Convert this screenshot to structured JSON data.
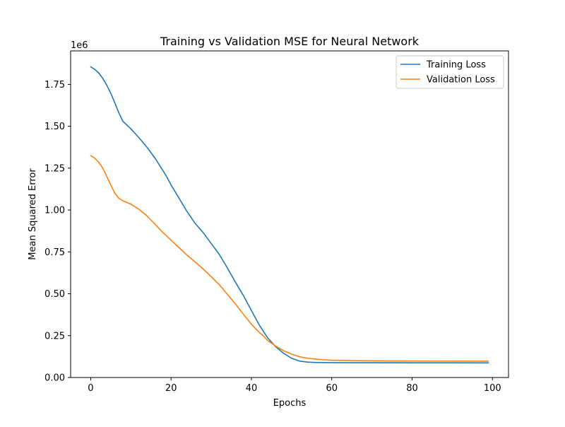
{
  "chart_data": {
    "type": "line",
    "title": "Training vs Validation MSE for Neural Network",
    "xlabel": "Epochs",
    "ylabel": "Mean Squared Error",
    "y_offset_label": "1e6",
    "y_scale": 1000000,
    "xlim": [
      -5,
      104
    ],
    "ylim": [
      0,
      1950000
    ],
    "xticks": [
      0,
      20,
      40,
      60,
      80,
      100
    ],
    "xtick_labels": [
      "0",
      "20",
      "40",
      "60",
      "80",
      "100"
    ],
    "yticks": [
      0,
      250000,
      500000,
      750000,
      1000000,
      1250000,
      1500000,
      1750000
    ],
    "ytick_labels": [
      "0.00",
      "0.25",
      "0.50",
      "0.75",
      "1.00",
      "1.25",
      "1.50",
      "1.75"
    ],
    "grid": false,
    "legend_position": "top-right",
    "series": [
      {
        "name": "Training Loss",
        "color": "#1f77b4",
        "x": [
          0,
          1,
          2,
          3,
          4,
          5,
          6,
          7,
          8,
          10,
          12,
          14,
          16,
          18,
          19,
          20,
          22,
          24,
          26,
          28,
          30,
          32,
          34,
          36,
          38,
          40,
          42,
          44,
          46,
          48,
          50,
          52,
          54,
          56,
          58,
          60,
          65,
          70,
          80,
          90,
          99
        ],
        "y": [
          1855000,
          1840000,
          1818000,
          1786000,
          1745000,
          1697000,
          1640000,
          1580000,
          1530000,
          1485000,
          1432000,
          1375000,
          1310000,
          1235000,
          1195000,
          1150000,
          1070000,
          990000,
          920000,
          865000,
          800000,
          735000,
          655000,
          570000,
          490000,
          400000,
          312000,
          238000,
          185000,
          145000,
          115000,
          98000,
          92000,
          90000,
          89500,
          89000,
          88500,
          88200,
          87900,
          87700,
          87500
        ]
      },
      {
        "name": "Validation Loss",
        "color": "#ff7f0e",
        "x": [
          0,
          1,
          2,
          3,
          4,
          5,
          6,
          7,
          8,
          9,
          10,
          12,
          14,
          16,
          18,
          20,
          22,
          24,
          26,
          28,
          30,
          32,
          34,
          36,
          38,
          40,
          42,
          43,
          44,
          46,
          48,
          50,
          52,
          54,
          56,
          58,
          60,
          65,
          70,
          80,
          90,
          99
        ],
        "y": [
          1325000,
          1310000,
          1285000,
          1250000,
          1200000,
          1150000,
          1100000,
          1070000,
          1055000,
          1045000,
          1035000,
          1005000,
          965000,
          915000,
          865000,
          820000,
          775000,
          730000,
          690000,
          648000,
          602000,
          555000,
          497000,
          440000,
          378000,
          318000,
          268000,
          248000,
          222000,
          188000,
          160000,
          140000,
          124000,
          115000,
          110000,
          106000,
          103000,
          101000,
          99500,
          98500,
          97800,
          97200
        ]
      }
    ]
  }
}
